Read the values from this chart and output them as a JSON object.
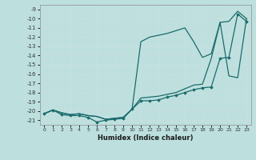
{
  "xlabel": "Humidex (Indice chaleur)",
  "xlim": [
    -0.5,
    23.5
  ],
  "ylim": [
    -21.5,
    -8.5
  ],
  "yticks": [
    -9,
    -10,
    -11,
    -12,
    -13,
    -14,
    -15,
    -16,
    -17,
    -18,
    -19,
    -20,
    -21
  ],
  "xticks": [
    0,
    1,
    2,
    3,
    4,
    5,
    6,
    7,
    8,
    9,
    10,
    11,
    12,
    13,
    14,
    15,
    16,
    17,
    18,
    19,
    20,
    21,
    22,
    23
  ],
  "bg_color": "#bde0df",
  "line_color": "#1a6b6b",
  "grid_color": "#d0e8e8",
  "line1_y": [
    -20.3,
    -19.9,
    -20.2,
    -20.4,
    -20.3,
    -20.5,
    -20.6,
    -20.9,
    -20.8,
    -20.7,
    -19.8,
    -12.5,
    -12.0,
    -11.8,
    -11.6,
    -11.3,
    -11.0,
    -12.5,
    -14.2,
    -13.8,
    -10.4,
    -10.3,
    -9.2,
    -10.0
  ],
  "line2_y": [
    -20.3,
    -19.9,
    -20.2,
    -20.4,
    -20.3,
    -20.5,
    -20.6,
    -20.9,
    -20.8,
    -20.7,
    -19.8,
    -18.6,
    -18.5,
    -18.4,
    -18.2,
    -18.0,
    -17.6,
    -17.2,
    -17.1,
    -14.3,
    -10.4,
    -16.2,
    -16.4,
    -10.0
  ],
  "line3_y": [
    -20.3,
    -19.9,
    -20.4,
    -20.5,
    -20.5,
    -20.7,
    -21.2,
    -21.0,
    -20.9,
    -20.8,
    -19.8,
    -18.9,
    -18.9,
    -18.8,
    -18.5,
    -18.3,
    -18.0,
    -17.7,
    -17.5,
    -17.4,
    -14.3,
    -14.2,
    -9.5,
    -10.3
  ]
}
